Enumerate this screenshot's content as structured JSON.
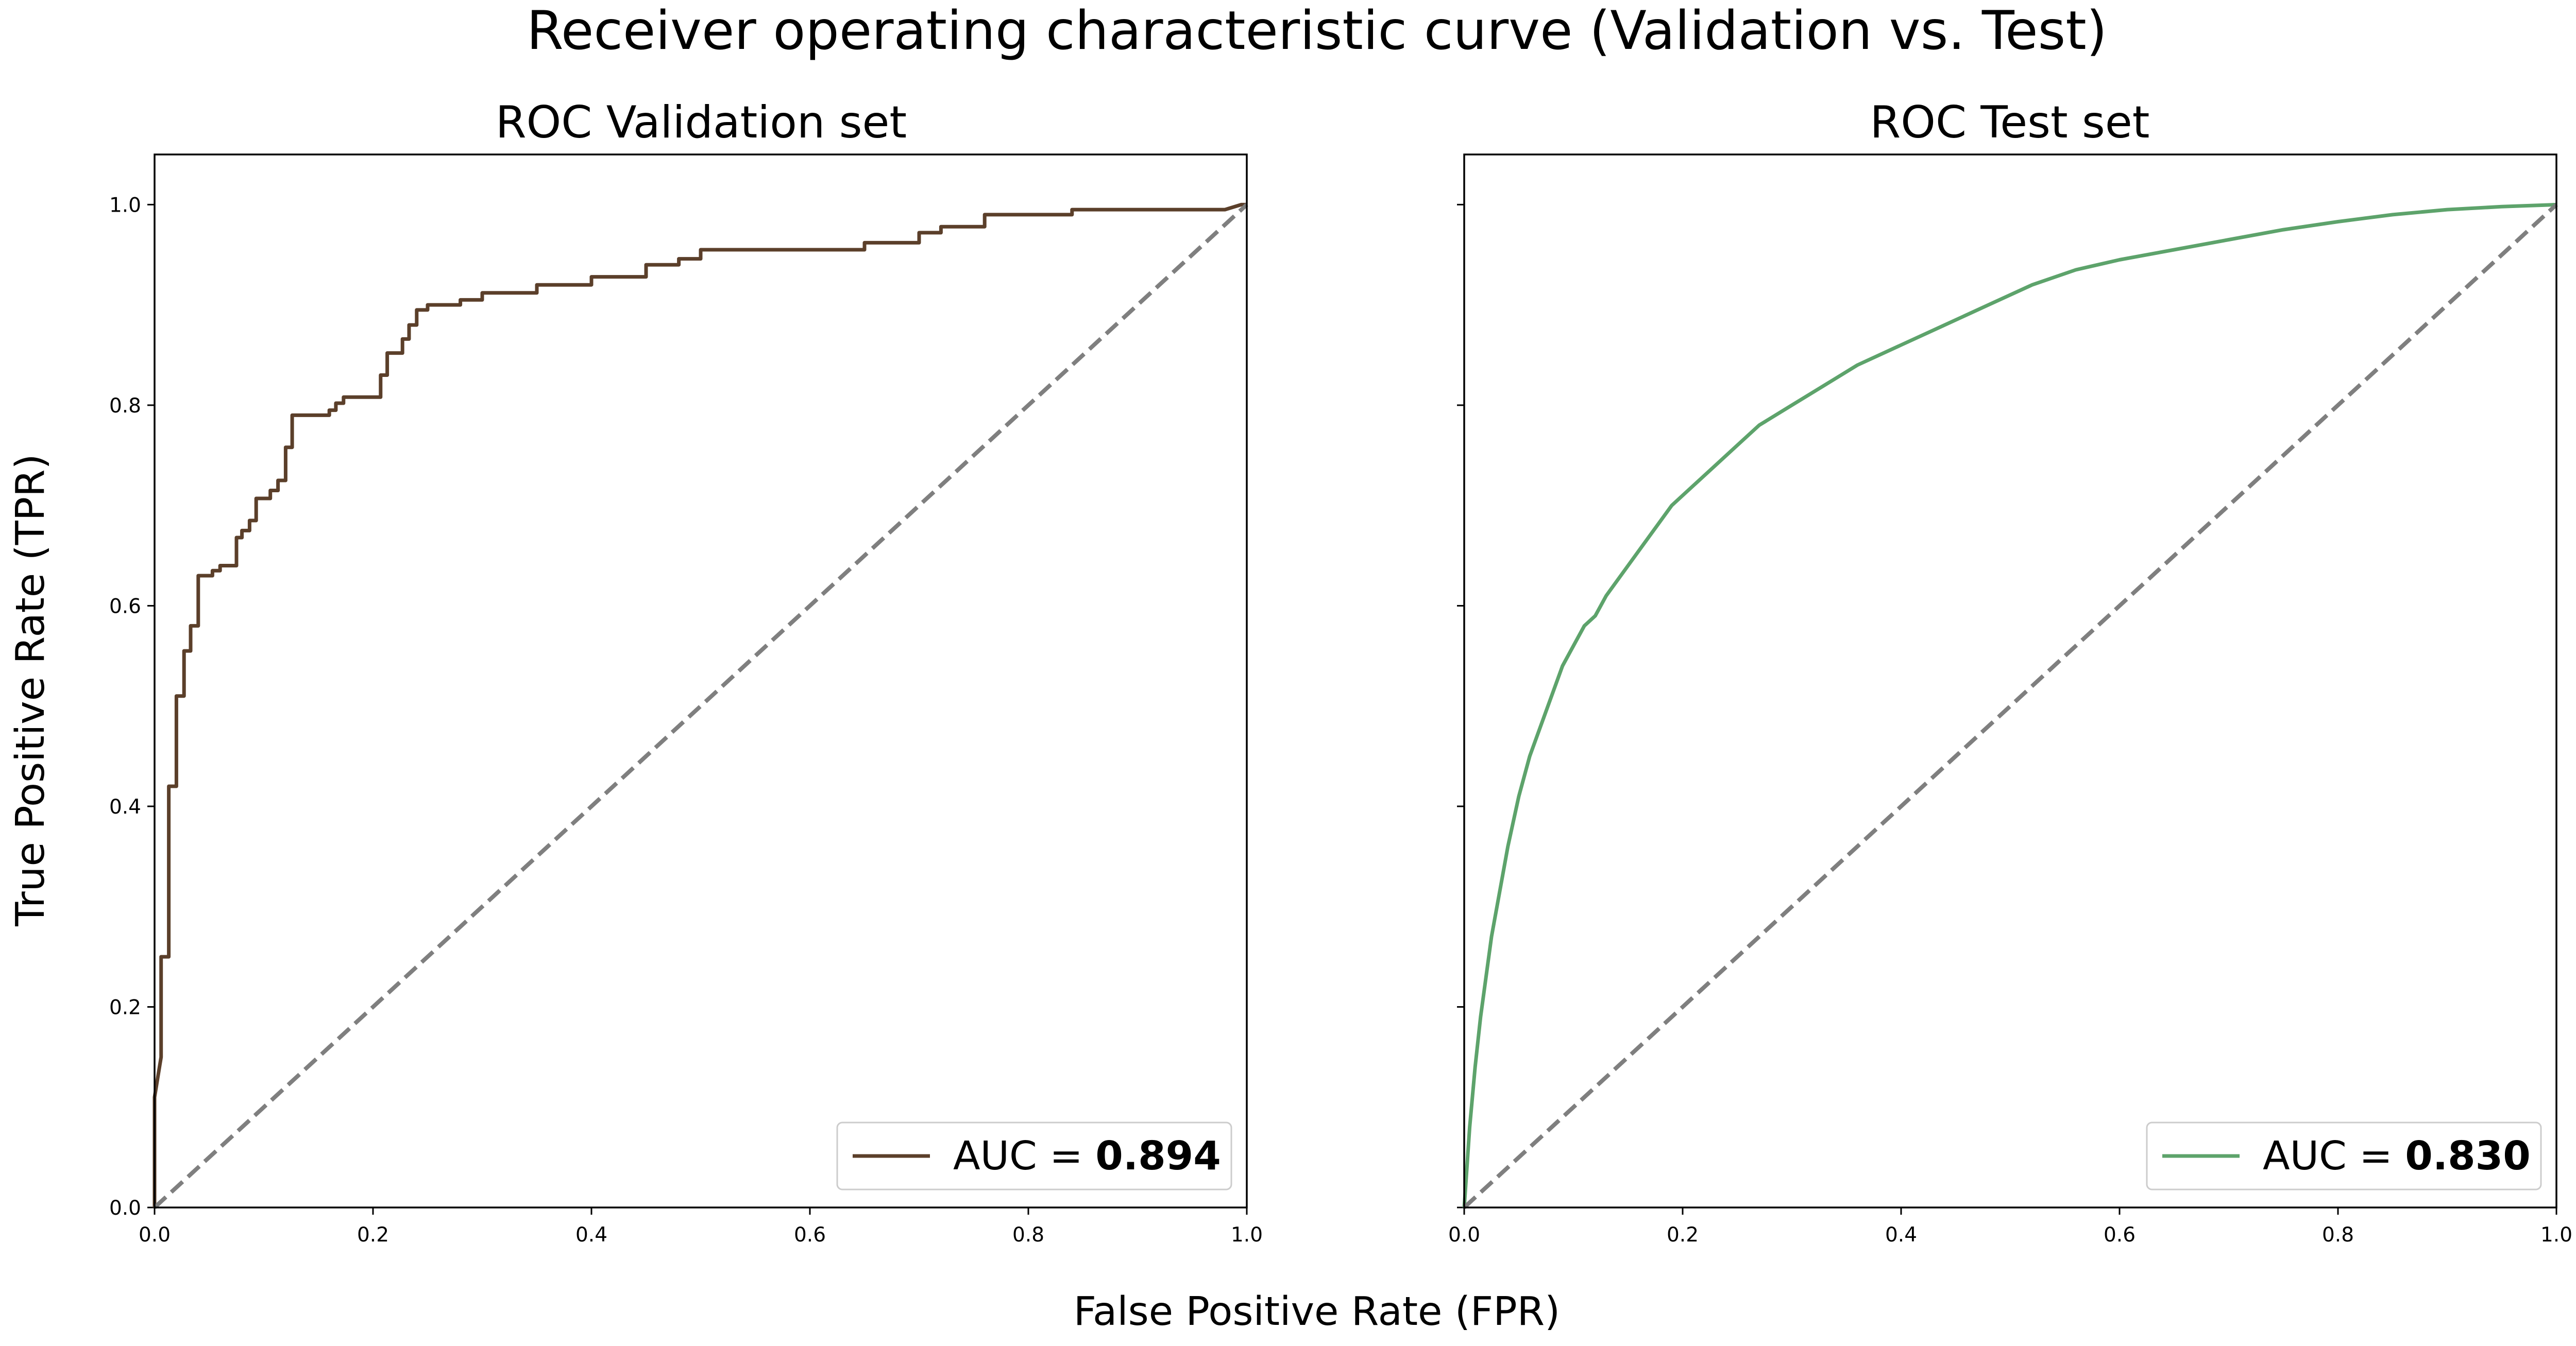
{
  "suptitle": "Receiver operating characteristic curve (Validation vs. Test)",
  "shared_xlabel": "False Positive Rate (FPR)",
  "shared_ylabel": "True Positive Rate (TPR)",
  "ticks": [
    "0.0",
    "0.2",
    "0.4",
    "0.6",
    "0.8",
    "1.0"
  ],
  "colors": {
    "validation": "#5b3f2a",
    "test": "#5da36b",
    "diagonal": "#7f7f7f",
    "axis": "#000000"
  },
  "chart_data": [
    {
      "type": "line",
      "title": "ROC Validation set",
      "xlim": [
        0,
        1
      ],
      "ylim": [
        0,
        1.05
      ],
      "grid": false,
      "legend_position": "lower-right",
      "legend": {
        "prefix": "AUC = ",
        "value": "0.894"
      },
      "series": [
        {
          "style": "step",
          "x": [
            0.0,
            0.0,
            0.006,
            0.006,
            0.013,
            0.013,
            0.02,
            0.02,
            0.027,
            0.027,
            0.033,
            0.033,
            0.04,
            0.04,
            0.053,
            0.053,
            0.06,
            0.06,
            0.075,
            0.075,
            0.08,
            0.08,
            0.087,
            0.087,
            0.093,
            0.093,
            0.106,
            0.106,
            0.113,
            0.113,
            0.12,
            0.12,
            0.126,
            0.126,
            0.133,
            0.133,
            0.16,
            0.16,
            0.166,
            0.166,
            0.173,
            0.173,
            0.207,
            0.207,
            0.213,
            0.213,
            0.227,
            0.227,
            0.233,
            0.233,
            0.24,
            0.24,
            0.25,
            0.25,
            0.28,
            0.28,
            0.3,
            0.3,
            0.35,
            0.35,
            0.4,
            0.4,
            0.45,
            0.45,
            0.48,
            0.48,
            0.5,
            0.5,
            0.55,
            0.55,
            0.65,
            0.65,
            0.7,
            0.7,
            0.72,
            0.72,
            0.76,
            0.76,
            0.84,
            0.84,
            0.98,
            0.995,
            1.0
          ],
          "y": [
            0.0,
            0.11,
            0.15,
            0.25,
            0.25,
            0.42,
            0.42,
            0.51,
            0.51,
            0.555,
            0.555,
            0.58,
            0.58,
            0.63,
            0.63,
            0.635,
            0.635,
            0.64,
            0.64,
            0.668,
            0.668,
            0.675,
            0.675,
            0.685,
            0.685,
            0.707,
            0.707,
            0.715,
            0.715,
            0.725,
            0.725,
            0.758,
            0.758,
            0.79,
            0.79,
            0.79,
            0.79,
            0.795,
            0.795,
            0.802,
            0.802,
            0.808,
            0.808,
            0.83,
            0.83,
            0.852,
            0.852,
            0.866,
            0.866,
            0.88,
            0.88,
            0.895,
            0.895,
            0.9,
            0.9,
            0.905,
            0.905,
            0.912,
            0.912,
            0.92,
            0.92,
            0.928,
            0.928,
            0.94,
            0.94,
            0.946,
            0.946,
            0.955,
            0.955,
            0.955,
            0.955,
            0.962,
            0.962,
            0.972,
            0.972,
            0.978,
            0.978,
            0.99,
            0.99,
            0.995,
            0.995,
            1.0,
            1.0
          ]
        },
        {
          "style": "dashed",
          "x": [
            0,
            1
          ],
          "y": [
            0,
            1
          ]
        }
      ]
    },
    {
      "type": "line",
      "title": "ROC Test set",
      "xlim": [
        0,
        1
      ],
      "ylim": [
        0,
        1.05
      ],
      "grid": false,
      "legend_position": "lower-right",
      "legend": {
        "prefix": "AUC = ",
        "value": "0.830"
      },
      "series": [
        {
          "style": "line",
          "x": [
            0.0,
            0.005,
            0.01,
            0.015,
            0.02,
            0.025,
            0.03,
            0.04,
            0.05,
            0.06,
            0.07,
            0.08,
            0.09,
            0.1,
            0.11,
            0.12,
            0.13,
            0.15,
            0.17,
            0.19,
            0.21,
            0.23,
            0.25,
            0.27,
            0.3,
            0.33,
            0.36,
            0.4,
            0.44,
            0.48,
            0.52,
            0.56,
            0.6,
            0.65,
            0.7,
            0.75,
            0.8,
            0.85,
            0.9,
            0.95,
            1.0
          ],
          "y": [
            0.0,
            0.08,
            0.14,
            0.19,
            0.23,
            0.27,
            0.3,
            0.36,
            0.41,
            0.45,
            0.48,
            0.51,
            0.54,
            0.56,
            0.58,
            0.59,
            0.61,
            0.64,
            0.67,
            0.7,
            0.72,
            0.74,
            0.76,
            0.78,
            0.8,
            0.82,
            0.84,
            0.86,
            0.88,
            0.9,
            0.92,
            0.935,
            0.945,
            0.955,
            0.965,
            0.975,
            0.983,
            0.99,
            0.995,
            0.998,
            1.0
          ]
        },
        {
          "style": "dashed",
          "x": [
            0,
            1
          ],
          "y": [
            0,
            1
          ]
        }
      ]
    }
  ]
}
